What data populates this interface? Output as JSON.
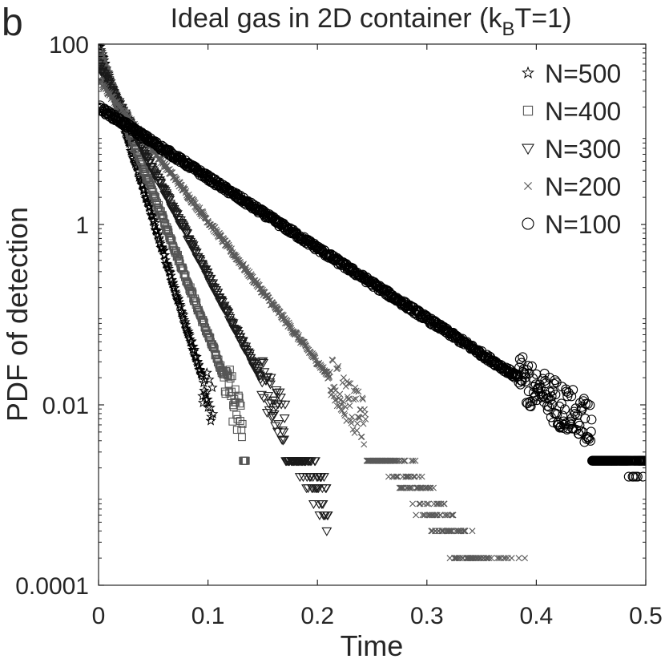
{
  "panel_label": "b",
  "chart_data": {
    "type": "scatter",
    "title_prefix": "Ideal gas in 2D container (k",
    "title_subscript": "B",
    "title_suffix": "T=1)",
    "xlabel": "Time",
    "ylabel": "PDF of detection",
    "xlim": [
      0,
      0.5
    ],
    "ylim": [
      0.0001,
      100
    ],
    "yscale": "log",
    "xticks": [
      0,
      0.1,
      0.2,
      0.3,
      0.4,
      0.5
    ],
    "xtick_labels": [
      "0",
      "0.1",
      "0.2",
      "0.3",
      "0.4",
      "0.5"
    ],
    "yticks": [
      0.0001,
      0.01,
      1,
      100
    ],
    "ytick_labels": [
      "0.0001",
      "0.01",
      "1",
      "100"
    ],
    "grid": false,
    "legend_position": "top-right",
    "series": [
      {
        "name": "N=500",
        "marker": "star",
        "color": "#000000",
        "start": 100,
        "rate": 90,
        "t_end": 0.105
      },
      {
        "name": "N=400",
        "marker": "square",
        "color": "#555555",
        "start": 80,
        "rate": 72,
        "t_end": 0.135
      },
      {
        "name": "N=300",
        "marker": "triangle-down",
        "color": "#1a1a1a",
        "start": 60,
        "rate": 54,
        "t_end": 0.21
      },
      {
        "name": "N=200",
        "marker": "x",
        "color": "#5a5a5a",
        "start": 40,
        "rate": 36,
        "t_end": 0.39
      },
      {
        "name": "N=100",
        "marker": "circle",
        "color": "#000000",
        "start": 20,
        "rate": 18,
        "t_end": 0.5
      }
    ],
    "sampling_dt": 0.0005
  }
}
